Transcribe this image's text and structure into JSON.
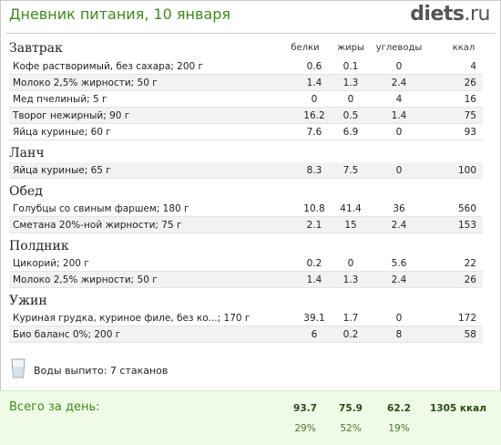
{
  "header": {
    "title": "Дневник питания, 10 января",
    "logo_main": "diets",
    "logo_tld": ".ru"
  },
  "columns": {
    "protein": "белки",
    "fat": "жиры",
    "carbs": "углеводы",
    "kcal": "ккал"
  },
  "sections": {
    "breakfast": "Завтрак",
    "lunch": "Ланч",
    "dinner": "Обед",
    "snack": "Полдник",
    "supper": "Ужин"
  },
  "rows": [
    {
      "name": "Кофе растворимый, без сахара; 200 г",
      "p": "0.6",
      "f": "0.1",
      "c": "0",
      "k": "4"
    },
    {
      "name": "Молоко 2,5% жирности; 50 г",
      "p": "1.4",
      "f": "1.3",
      "c": "2.4",
      "k": "26"
    },
    {
      "name": "Мед пчелиный; 5 г",
      "p": "0",
      "f": "0",
      "c": "4",
      "k": "16"
    },
    {
      "name": "Творог нежирный; 90 г",
      "p": "16.2",
      "f": "0.5",
      "c": "1.4",
      "k": "75"
    },
    {
      "name": "Яйца куриные; 60 г",
      "p": "7.6",
      "f": "6.9",
      "c": "0",
      "k": "93"
    },
    {
      "name": "Яйца куриные; 65 г",
      "p": "8.3",
      "f": "7.5",
      "c": "0",
      "k": "100"
    },
    {
      "name": "Голубцы со свиным фаршем; 180 г",
      "p": "10.8",
      "f": "41.4",
      "c": "36",
      "k": "560"
    },
    {
      "name": "Сметана 20%-ной жирности; 75 г",
      "p": "2.1",
      "f": "15",
      "c": "2.4",
      "k": "153"
    },
    {
      "name": "Цикорий; 200 г",
      "p": "0.2",
      "f": "0",
      "c": "5.6",
      "k": "22"
    },
    {
      "name": "Молоко 2,5% жирности; 50 г",
      "p": "1.4",
      "f": "1.3",
      "c": "2.4",
      "k": "26"
    },
    {
      "name": "Куриная грудка, куриное филе, без ко...; 170 г",
      "p": "39.1",
      "f": "1.7",
      "c": "0",
      "k": "172"
    },
    {
      "name": "Био баланс 0%; 200 г",
      "p": "6",
      "f": "0.2",
      "c": "8",
      "k": "58"
    }
  ],
  "water": {
    "text": "Воды выпито: 7 стаканов",
    "icon": "glass-icon"
  },
  "totals": {
    "label": "Всего за день:",
    "protein": "93.7",
    "fat": "75.9",
    "carbs": "62.2",
    "kcal": "1305 ккал",
    "protein_pct": "29%",
    "fat_pct": "52%",
    "carbs_pct": "19%"
  },
  "colors": {
    "title": "#3d8a18",
    "totals_bg": "#eefbe6",
    "row_alt": "#f2f2f2"
  }
}
